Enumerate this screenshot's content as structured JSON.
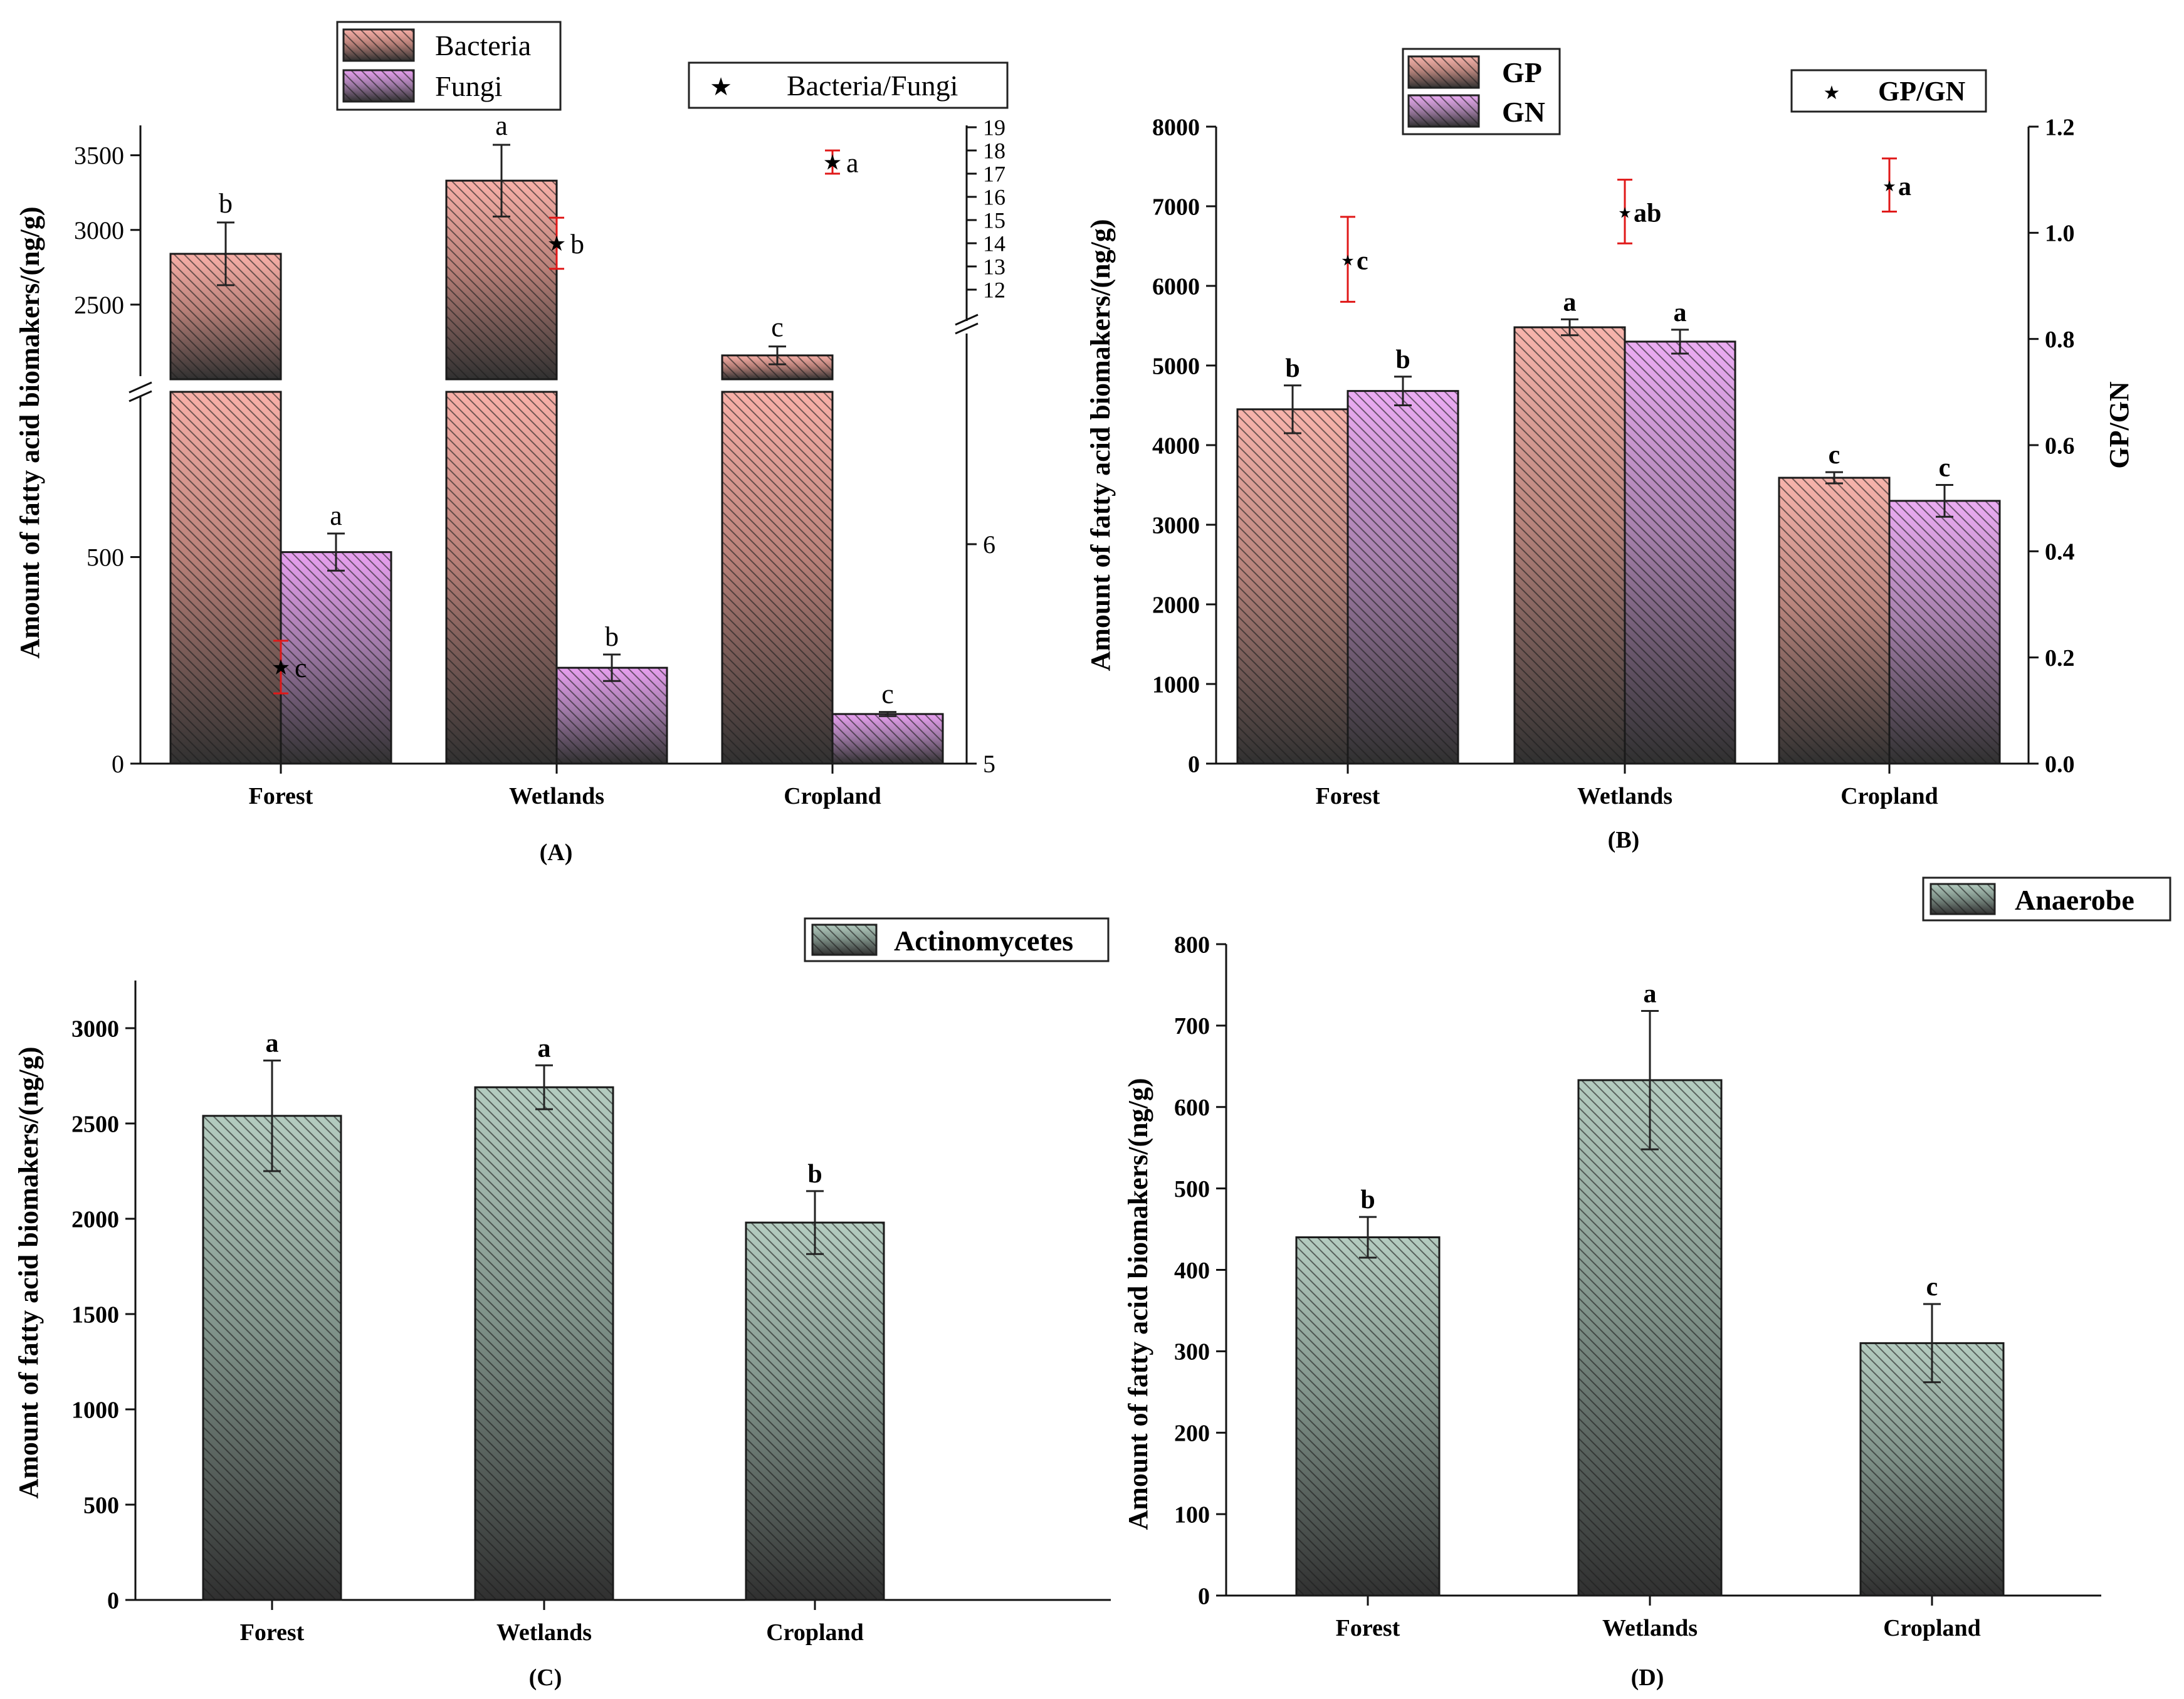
{
  "colors": {
    "bacteria": "#f8b0a8",
    "fungi": "#e8a0f0",
    "gp": "#f8b4ac",
    "gn": "#ecacf4",
    "green": "#b4ccc0",
    "dark": "#303030",
    "ratio_err": "#e01818"
  },
  "chart_data": [
    {
      "id": "A",
      "type": "bar",
      "panel_label": "(A)",
      "title": "",
      "ylabel": "Amount of fatty acid biomakers/(ng/g)",
      "categories": [
        "Forest",
        "Wetlands",
        "Cropland"
      ],
      "y_ticks_lower": [
        "0",
        "500"
      ],
      "y_ticks_upper": [
        "2500",
        "3000",
        "3500"
      ],
      "ylim_lower": [
        0,
        900
      ],
      "ylim_upper": [
        2000,
        3700
      ],
      "right_ticks_lower": [
        "5",
        "6"
      ],
      "right_ticks_upper": [
        "12",
        "13",
        "14",
        "15",
        "16",
        "17",
        "18",
        "19"
      ],
      "series": [
        {
          "name": "Bacteria",
          "values": [
            2840,
            3330,
            2160
          ],
          "errors": [
            210,
            240,
            60
          ],
          "letters": [
            "b",
            "a",
            "c"
          ]
        },
        {
          "name": "Fungi",
          "values": [
            512,
            232,
            120
          ],
          "errors": [
            45,
            32,
            5
          ],
          "letters": [
            "a",
            "b",
            "c"
          ]
        }
      ],
      "ratio": {
        "name": "Bacteria/Fungi",
        "values": [
          5.44,
          14.0,
          17.5
        ],
        "errors": [
          0.12,
          1.1,
          0.5
        ],
        "letters": [
          "c",
          "b",
          "a"
        ]
      },
      "legend": [
        "Bacteria",
        "Fungi"
      ],
      "legend_ratio": "Bacteria/Fungi"
    },
    {
      "id": "B",
      "type": "bar",
      "panel_label": "(B)",
      "title": "",
      "ylabel": "Amount of fatty acid biomakers/(ng/g)",
      "y2label": "GP/GN",
      "categories": [
        "Forest",
        "Wetlands",
        "Cropland"
      ],
      "ylim": [
        0,
        8000
      ],
      "y_ticks": [
        "0",
        "1000",
        "2000",
        "3000",
        "4000",
        "5000",
        "6000",
        "7000",
        "8000"
      ],
      "y2lim": [
        0,
        1.2
      ],
      "y2_ticks": [
        "0.0",
        "0.2",
        "0.4",
        "0.6",
        "0.8",
        "1.0",
        "1.2"
      ],
      "series": [
        {
          "name": "GP",
          "values": [
            4450,
            5480,
            3590
          ],
          "errors": [
            300,
            100,
            70
          ],
          "letters": [
            "b",
            "a",
            "c"
          ]
        },
        {
          "name": "GN",
          "values": [
            4680,
            5300,
            3300
          ],
          "errors": [
            180,
            150,
            200
          ],
          "letters": [
            "b",
            "a",
            "c"
          ]
        }
      ],
      "ratio": {
        "name": "GP/GN",
        "values": [
          0.95,
          1.04,
          1.09
        ],
        "errors": [
          0.08,
          0.06,
          0.05
        ],
        "letters": [
          "c",
          "ab",
          "a"
        ]
      },
      "legend": [
        "GP",
        "GN"
      ],
      "legend_ratio": "GP/GN"
    },
    {
      "id": "C",
      "type": "bar",
      "panel_label": "(C)",
      "title": "",
      "ylabel": "Amount of fatty acid biomakers/(ng/g)",
      "categories": [
        "Forest",
        "Wetlands",
        "Cropland"
      ],
      "ylim": [
        0,
        3250
      ],
      "y_ticks": [
        "0",
        "500",
        "1000",
        "1500",
        "2000",
        "2500",
        "3000"
      ],
      "series": [
        {
          "name": "Actinomycetes",
          "values": [
            2540,
            2690,
            1980
          ],
          "errors": [
            290,
            115,
            165
          ],
          "letters": [
            "a",
            "a",
            "b"
          ]
        }
      ],
      "legend": [
        "Actinomycetes"
      ]
    },
    {
      "id": "D",
      "type": "bar",
      "panel_label": "(D)",
      "title": "",
      "ylabel": "Amount of fatty acid biomakers/(ng/g)",
      "categories": [
        "Forest",
        "Wetlands",
        "Cropland"
      ],
      "ylim": [
        0,
        800
      ],
      "y_ticks": [
        "0",
        "100",
        "200",
        "300",
        "400",
        "500",
        "600",
        "700",
        "800"
      ],
      "series": [
        {
          "name": "Anaerobe",
          "values": [
            440,
            633,
            310
          ],
          "errors": [
            25,
            85,
            48
          ],
          "letters": [
            "b",
            "a",
            "c"
          ]
        }
      ],
      "legend": [
        "Anaerobe"
      ]
    }
  ]
}
